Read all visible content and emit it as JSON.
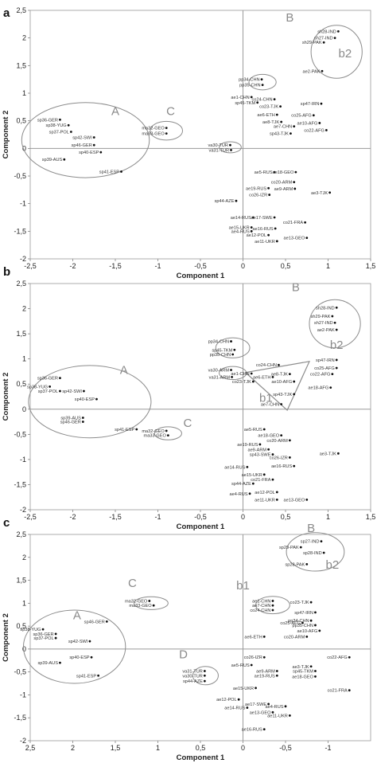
{
  "chart_data": [
    {
      "panel": "a",
      "type": "scatter",
      "xlabel": "Component 1",
      "ylabel": "Component 2",
      "xlim": [
        -2.5,
        1.5
      ],
      "ylim": [
        -2,
        2.5
      ],
      "x_ticks": [
        "-2,5",
        "-2",
        "-1,5",
        "-1",
        "-0,5",
        "0",
        "0,5",
        "1",
        "1,5"
      ],
      "y_ticks": [
        "2,5",
        "2",
        "1,5",
        "1",
        "0,5",
        "0",
        "-0,5",
        "-1",
        "-1,5",
        "-2"
      ],
      "points": [
        {
          "label": "sp36-GER",
          "x": -2.15,
          "y": 0.52
        },
        {
          "label": "sp38-YUG",
          "x": -2.05,
          "y": 0.42
        },
        {
          "label": "sp37-POL",
          "x": -2.02,
          "y": 0.3
        },
        {
          "label": "sp42-SWI",
          "x": -1.75,
          "y": 0.2
        },
        {
          "label": "sp46-GER",
          "x": -1.75,
          "y": 0.06
        },
        {
          "label": "sp40-ESP",
          "x": -1.67,
          "y": -0.07
        },
        {
          "label": "sp39-AUS",
          "x": -2.1,
          "y": -0.2
        },
        {
          "label": "sp41-ESP",
          "x": -1.43,
          "y": -0.42
        },
        {
          "label": "ma32-GEO",
          "x": -0.9,
          "y": 0.37
        },
        {
          "label": "ma33-GEO",
          "x": -0.9,
          "y": 0.27
        },
        {
          "label": "va30-TUR",
          "x": -0.15,
          "y": 0.06
        },
        {
          "label": "va31-TUR",
          "x": -0.14,
          "y": -0.03
        },
        {
          "label": "sh28-IND",
          "x": 1.12,
          "y": 2.12
        },
        {
          "label": "sh27-IND",
          "x": 1.08,
          "y": 2.0
        },
        {
          "label": "sh29-PAK",
          "x": 0.95,
          "y": 1.92
        },
        {
          "label": "ae2-PAK",
          "x": 0.93,
          "y": 1.4
        },
        {
          "label": "pp34-CHN",
          "x": 0.22,
          "y": 1.25
        },
        {
          "label": "pp35-CHN",
          "x": 0.23,
          "y": 1.15
        },
        {
          "label": "ae1-CHN",
          "x": 0.1,
          "y": 0.93
        },
        {
          "label": "co24-CHN",
          "x": 0.37,
          "y": 0.89
        },
        {
          "label": "sp45-TKM",
          "x": 0.17,
          "y": 0.83
        },
        {
          "label": "sp47-IRN",
          "x": 0.92,
          "y": 0.81
        },
        {
          "label": "co23-TJK",
          "x": 0.44,
          "y": 0.76
        },
        {
          "label": "ae6-ETH",
          "x": 0.4,
          "y": 0.61
        },
        {
          "label": "co25-AFG",
          "x": 0.83,
          "y": 0.6
        },
        {
          "label": "ae8-TJK",
          "x": 0.45,
          "y": 0.48
        },
        {
          "label": "ae10-AFG",
          "x": 0.9,
          "y": 0.46
        },
        {
          "label": "ae7-CHN",
          "x": 0.6,
          "y": 0.4
        },
        {
          "label": "co22-AFG",
          "x": 0.98,
          "y": 0.33
        },
        {
          "label": "sp43-TJK",
          "x": 0.56,
          "y": 0.27
        },
        {
          "label": "ae5-RUS",
          "x": 0.37,
          "y": -0.43
        },
        {
          "label": "ae18-GEO",
          "x": 0.62,
          "y": -0.43
        },
        {
          "label": "co20-ARM",
          "x": 0.6,
          "y": -0.61
        },
        {
          "label": "ae19-RUS",
          "x": 0.3,
          "y": -0.72
        },
        {
          "label": "ae9-ARM",
          "x": 0.61,
          "y": -0.73
        },
        {
          "label": "ae3-TJK",
          "x": 1.02,
          "y": -0.8
        },
        {
          "label": "co26-IZR",
          "x": 0.31,
          "y": -0.84
        },
        {
          "label": "sp44-AZE",
          "x": -0.08,
          "y": -0.95
        },
        {
          "label": "ae14-RUS",
          "x": 0.12,
          "y": -1.25
        },
        {
          "label": "ae17-SWE",
          "x": 0.37,
          "y": -1.25
        },
        {
          "label": "co21-FRA",
          "x": 0.73,
          "y": -1.34
        },
        {
          "label": "ae15-UKR",
          "x": 0.1,
          "y": -1.43
        },
        {
          "label": "ae16-RUS",
          "x": 0.38,
          "y": -1.45
        },
        {
          "label": "ae4-RUS",
          "x": 0.1,
          "y": -1.5
        },
        {
          "label": "ae12-POL",
          "x": 0.3,
          "y": -1.57
        },
        {
          "label": "ae13-GEO",
          "x": 0.75,
          "y": -1.62
        },
        {
          "label": "ae11-UKR",
          "x": 0.4,
          "y": -1.68
        }
      ],
      "group_labels": [
        {
          "text": "A",
          "x": -1.5,
          "y": 0.6
        },
        {
          "text": "C",
          "x": -0.85,
          "y": 0.6
        },
        {
          "text": "B",
          "x": 0.55,
          "y": 2.3
        },
        {
          "text": "b2",
          "x": 1.2,
          "y": 1.65
        }
      ],
      "ellipses": [
        {
          "cx": -1.85,
          "cy": 0.15,
          "rx": 0.75,
          "ry": 0.68
        },
        {
          "cx": -0.9,
          "cy": 0.32,
          "rx": 0.19,
          "ry": 0.17
        },
        {
          "cx": -0.15,
          "cy": 0.02,
          "rx": 0.13,
          "ry": 0.1
        },
        {
          "cx": 0.23,
          "cy": 1.2,
          "rx": 0.16,
          "ry": 0.14
        },
        {
          "cx": 1.1,
          "cy": 1.75,
          "rx": 0.3,
          "ry": 0.48
        }
      ]
    },
    {
      "panel": "b",
      "type": "scatter",
      "xlabel": "Component 1",
      "ylabel": "Component 2",
      "xlim": [
        -2.5,
        1.5
      ],
      "ylim": [
        -2,
        2.5
      ],
      "x_ticks": [
        "-2,5",
        "-2",
        "-1,5",
        "-1",
        "-0,5",
        "0",
        "0,5",
        "1",
        "1,5"
      ],
      "y_ticks": [
        "2,5",
        "2",
        "1,5",
        "1",
        "0,5",
        "0",
        "-0,5",
        "-1",
        "-1,5",
        "-2"
      ],
      "points": [
        {
          "label": "sp36-GER",
          "x": -2.15,
          "y": 0.62
        },
        {
          "label": "sp38-YUG",
          "x": -2.27,
          "y": 0.45
        },
        {
          "label": "sp37-POL",
          "x": -2.15,
          "y": 0.36
        },
        {
          "label": "sp42-SWI",
          "x": -1.87,
          "y": 0.36
        },
        {
          "label": "sp40-ESP",
          "x": -1.72,
          "y": 0.2
        },
        {
          "label": "sp39-AUS",
          "x": -1.88,
          "y": -0.17
        },
        {
          "label": "sp46-GER",
          "x": -1.88,
          "y": -0.25
        },
        {
          "label": "sp41-ESP",
          "x": -1.25,
          "y": -0.4
        },
        {
          "label": "ma32-GEO",
          "x": -0.9,
          "y": -0.43
        },
        {
          "label": "ma33-GEO",
          "x": -0.88,
          "y": -0.52
        },
        {
          "label": "pp34-CHN",
          "x": -0.14,
          "y": 1.35
        },
        {
          "label": "sp45-TKM",
          "x": -0.1,
          "y": 1.18
        },
        {
          "label": "pp35-CHN",
          "x": -0.12,
          "y": 1.09
        },
        {
          "label": "va30-ARM",
          "x": -0.14,
          "y": 0.78
        },
        {
          "label": "va31-ARM",
          "x": -0.13,
          "y": 0.64
        },
        {
          "label": "sh28-IND",
          "x": 1.1,
          "y": 2.02
        },
        {
          "label": "sh29-PAK",
          "x": 1.05,
          "y": 1.85
        },
        {
          "label": "sh27-IND",
          "x": 1.08,
          "y": 1.72
        },
        {
          "label": "ae2-PAK",
          "x": 1.1,
          "y": 1.58
        },
        {
          "label": "co24-CHN",
          "x": 0.42,
          "y": 0.88
        },
        {
          "label": "sp47-IRN",
          "x": 1.1,
          "y": 0.98
        },
        {
          "label": "co25-AFG",
          "x": 1.1,
          "y": 0.82
        },
        {
          "label": "ae1-CHN",
          "x": 0.1,
          "y": 0.71
        },
        {
          "label": "ae6-ETH",
          "x": 0.35,
          "y": 0.64
        },
        {
          "label": "ae8-TJK",
          "x": 0.55,
          "y": 0.7
        },
        {
          "label": "co22-AFG",
          "x": 1.05,
          "y": 0.7
        },
        {
          "label": "co23-TJK",
          "x": 0.12,
          "y": 0.55
        },
        {
          "label": "ae10-AFG",
          "x": 0.6,
          "y": 0.55
        },
        {
          "label": "ae18-AFG",
          "x": 1.03,
          "y": 0.43
        },
        {
          "label": "sp43-TJK",
          "x": 0.6,
          "y": 0.3
        },
        {
          "label": "ae7-CHN",
          "x": 0.45,
          "y": 0.1
        },
        {
          "label": "ae5-RUS",
          "x": 0.25,
          "y": -0.4
        },
        {
          "label": "ae18-GEO",
          "x": 0.45,
          "y": -0.52
        },
        {
          "label": "co20-ARM",
          "x": 0.55,
          "y": -0.62
        },
        {
          "label": "ae19-RUS",
          "x": 0.2,
          "y": -0.7
        },
        {
          "label": "ae9-ARM",
          "x": 0.3,
          "y": -0.8
        },
        {
          "label": "ae3-TJK",
          "x": 1.12,
          "y": -0.88
        },
        {
          "label": "sp43-SWE",
          "x": 0.35,
          "y": -0.9
        },
        {
          "label": "co26-IZR",
          "x": 0.55,
          "y": -0.96
        },
        {
          "label": "ae16-RUS",
          "x": 0.6,
          "y": -1.13
        },
        {
          "label": "ae14-RUS",
          "x": 0.05,
          "y": -1.15
        },
        {
          "label": "ae15-UKR",
          "x": 0.25,
          "y": -1.3
        },
        {
          "label": "co21-FRA",
          "x": 0.35,
          "y": -1.4
        },
        {
          "label": "sp44-AZE",
          "x": 0.12,
          "y": -1.48
        },
        {
          "label": "ae12-POL",
          "x": 0.4,
          "y": -1.65
        },
        {
          "label": "ae4-RUS",
          "x": 0.08,
          "y": -1.68
        },
        {
          "label": "ae11-UKR",
          "x": 0.4,
          "y": -1.8
        },
        {
          "label": "ae13-GEO",
          "x": 0.75,
          "y": -1.8
        }
      ],
      "group_labels": [
        {
          "text": "A",
          "x": -1.4,
          "y": 0.7
        },
        {
          "text": "C",
          "x": -0.65,
          "y": -0.35
        },
        {
          "text": "B",
          "x": 0.62,
          "y": 2.35
        },
        {
          "text": "b2",
          "x": 1.1,
          "y": 1.2
        },
        {
          "text": "b1",
          "x": 0.27,
          "y": 0.15
        }
      ],
      "ellipses": [
        {
          "cx": -1.8,
          "cy": 0.15,
          "rx": 0.72,
          "ry": 0.72
        },
        {
          "cx": -0.88,
          "cy": -0.48,
          "rx": 0.16,
          "ry": 0.13
        },
        {
          "cx": -0.12,
          "cy": 1.22,
          "rx": 0.2,
          "ry": 0.2
        },
        {
          "cx": -0.12,
          "cy": 0.72,
          "rx": 0.16,
          "ry": 0.13
        },
        {
          "cx": 1.08,
          "cy": 1.7,
          "rx": 0.3,
          "ry": 0.48
        }
      ],
      "triangle": [
        [
          0.03,
          0.73
        ],
        [
          0.78,
          0.95
        ],
        [
          0.52,
          -0.02
        ]
      ]
    },
    {
      "panel": "c",
      "type": "scatter",
      "xlabel": "Component 1",
      "ylabel": "Component 2",
      "xlim": [
        2.5,
        -1.5
      ],
      "ylim": [
        -2,
        2.5
      ],
      "x_ticks": [
        "2,5",
        "2",
        "1,5",
        "1",
        "0,5",
        "0",
        "-0,5",
        "-1"
      ],
      "y_ticks": [
        "2,5",
        "2",
        "1,5",
        "1",
        "0,5",
        "0",
        "-0,5",
        "-1",
        "-1,5",
        "-2"
      ],
      "points": [
        {
          "label": "sp46-GER",
          "x": 1.6,
          "y": 0.6
        },
        {
          "label": "sp38-YUG",
          "x": 2.35,
          "y": 0.43
        },
        {
          "label": "sp36-GER",
          "x": 2.2,
          "y": 0.33
        },
        {
          "label": "sp37-POL",
          "x": 2.2,
          "y": 0.24
        },
        {
          "label": "sp42-SWI",
          "x": 1.8,
          "y": 0.17
        },
        {
          "label": "sp40-ESP",
          "x": 1.78,
          "y": -0.18
        },
        {
          "label": "sp39-AUS",
          "x": 2.15,
          "y": -0.3
        },
        {
          "label": "sp41-ESP",
          "x": 1.7,
          "y": -0.58
        },
        {
          "label": "ma32-GEO",
          "x": 1.1,
          "y": 1.05
        },
        {
          "label": "ma33-GEO",
          "x": 1.05,
          "y": 0.95
        },
        {
          "label": "va31-TUR",
          "x": 0.45,
          "y": -0.48
        },
        {
          "label": "va30-TUR",
          "x": 0.45,
          "y": -0.58
        },
        {
          "label": "sp44-AZE",
          "x": 0.45,
          "y": -0.7
        },
        {
          "label": "sp27-IND",
          "x": -0.92,
          "y": 2.35
        },
        {
          "label": "sp29-PAK",
          "x": -0.68,
          "y": 2.22
        },
        {
          "label": "sp28-IND",
          "x": -0.95,
          "y": 2.1
        },
        {
          "label": "sp28-PAK",
          "x": -0.75,
          "y": 1.85
        },
        {
          "label": "ae1-CHN",
          "x": -0.35,
          "y": 1.05
        },
        {
          "label": "co23-TJK",
          "x": -0.8,
          "y": 1.02
        },
        {
          "label": "ae7-CHN",
          "x": -0.35,
          "y": 0.95
        },
        {
          "label": "co24-CHN",
          "x": -0.35,
          "y": 0.85
        },
        {
          "label": "sp47-IRN",
          "x": -0.85,
          "y": 0.8
        },
        {
          "label": "co25-AFG",
          "x": -0.7,
          "y": 0.57
        },
        {
          "label": "pp34-CHN",
          "x": -0.8,
          "y": 0.62
        },
        {
          "label": "pp35-CHN",
          "x": -0.85,
          "y": 0.52
        },
        {
          "label": "ae10-AFG",
          "x": -0.9,
          "y": 0.4
        },
        {
          "label": "ae6-ETH",
          "x": -0.25,
          "y": 0.27
        },
        {
          "label": "co20-ARM",
          "x": -0.75,
          "y": 0.27
        },
        {
          "label": "co26-IZR",
          "x": -0.25,
          "y": -0.18
        },
        {
          "label": "co22-AFG",
          "x": -1.25,
          "y": -0.18
        },
        {
          "label": "ae5-RUS",
          "x": -0.1,
          "y": -0.35
        },
        {
          "label": "ae3-TJK",
          "x": -0.8,
          "y": -0.38
        },
        {
          "label": "ae9-ARM",
          "x": -0.4,
          "y": -0.48
        },
        {
          "label": "sp45-TKM",
          "x": -0.85,
          "y": -0.48
        },
        {
          "label": "ae19-RUS",
          "x": -0.4,
          "y": -0.58
        },
        {
          "label": "ae18-GEO",
          "x": -0.85,
          "y": -0.6
        },
        {
          "label": "ae15-UKR",
          "x": -0.15,
          "y": -0.85
        },
        {
          "label": "co21-FRA",
          "x": -1.25,
          "y": -0.9
        },
        {
          "label": "ae12-POL",
          "x": 0.05,
          "y": -1.1
        },
        {
          "label": "ae17-SWE",
          "x": -0.3,
          "y": -1.2
        },
        {
          "label": "ae4-RUS",
          "x": -0.5,
          "y": -1.25
        },
        {
          "label": "ae14-RUS",
          "x": -0.05,
          "y": -1.28
        },
        {
          "label": "ae13-GEO",
          "x": -0.35,
          "y": -1.38
        },
        {
          "label": "ae11-UKR",
          "x": -0.55,
          "y": -1.45
        },
        {
          "label": "ae16-RUS",
          "x": -0.25,
          "y": -1.75
        }
      ],
      "group_labels": [
        {
          "text": "A",
          "x": 1.95,
          "y": 0.65
        },
        {
          "text": "C",
          "x": 1.3,
          "y": 1.35
        },
        {
          "text": "D",
          "x": 0.7,
          "y": -0.2
        },
        {
          "text": "B",
          "x": -0.8,
          "y": 2.55
        },
        {
          "text": "b2",
          "x": -1.05,
          "y": 1.75
        },
        {
          "text": "b1",
          "x": 0.0,
          "y": 1.3
        }
      ],
      "ellipses": [
        {
          "cx": 1.98,
          "cy": 0.05,
          "rx": 0.6,
          "ry": 0.8
        },
        {
          "cx": 1.08,
          "cy": 1.0,
          "rx": 0.2,
          "ry": 0.14
        },
        {
          "cx": 0.44,
          "cy": -0.58,
          "rx": 0.15,
          "ry": 0.2
        },
        {
          "cx": -0.35,
          "cy": 0.96,
          "rx": 0.2,
          "ry": 0.19
        },
        {
          "cx": -0.85,
          "cy": 2.12,
          "rx": 0.34,
          "ry": 0.42
        }
      ]
    }
  ],
  "panel_letters": [
    "a",
    "b",
    "c"
  ]
}
